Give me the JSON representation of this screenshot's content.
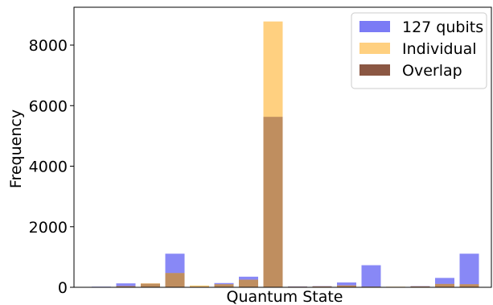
{
  "chart_data": {
    "type": "bar",
    "title": "",
    "xlabel": "Quantum State",
    "ylabel": "Frequency",
    "ylim": [
      0,
      9250
    ],
    "yticks": [
      0,
      2000,
      4000,
      6000,
      8000
    ],
    "grid": false,
    "legend_position": "top-right",
    "series": [
      {
        "name": "127 qubits",
        "color": "#7b7bf5",
        "values": [
          20,
          130,
          120,
          1110,
          20,
          140,
          350,
          5630,
          30,
          40,
          160,
          730,
          10,
          40,
          310,
          1110
        ]
      },
      {
        "name": "Individual",
        "color": "#ffd080",
        "values": [
          10,
          40,
          130,
          470,
          60,
          100,
          250,
          8780,
          20,
          30,
          60,
          20,
          20,
          30,
          110,
          100
        ]
      },
      {
        "name": "Overlap",
        "color": "#8b5743",
        "values": [
          10,
          40,
          120,
          470,
          20,
          100,
          250,
          5630,
          20,
          30,
          60,
          20,
          10,
          30,
          110,
          100
        ]
      }
    ]
  }
}
